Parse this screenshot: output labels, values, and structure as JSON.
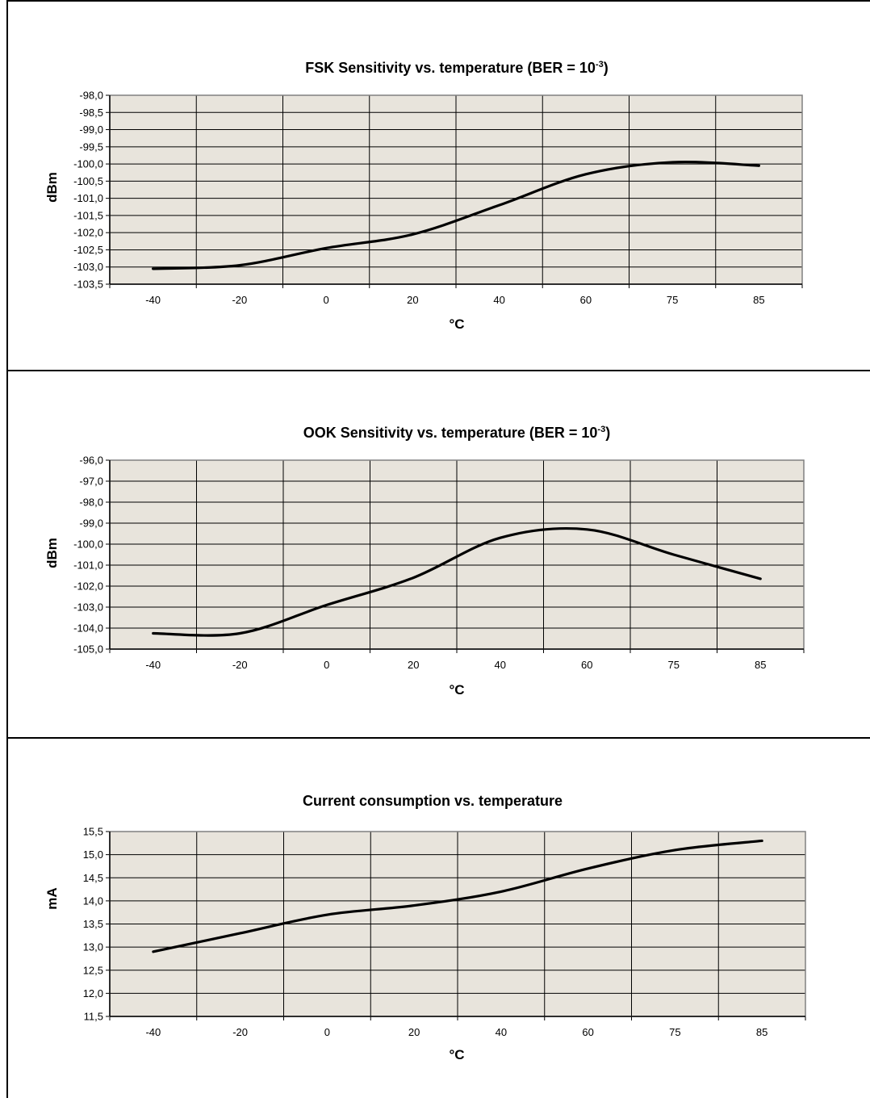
{
  "chart_data": [
    {
      "type": "line",
      "title_main": "FSK Sensitivity vs. temperature (BER = 10",
      "title_sup": "-3",
      "title_end": ")",
      "xlabel": "°C",
      "ylabel": "dBm",
      "categories": [
        "-40",
        "-20",
        "0",
        "20",
        "40",
        "60",
        "75",
        "85"
      ],
      "ylim": [
        -103.5,
        -98.0
      ],
      "ystep": 0.5,
      "ytick_labels": [
        "-98,0",
        "-98,5",
        "-99,0",
        "-99,5",
        "-100,0",
        "-100,5",
        "-101,0",
        "-101,5",
        "-102,0",
        "-102,5",
        "-103,0",
        "-103,5"
      ],
      "grid": true,
      "series": [
        {
          "values": [
            -103.05,
            -102.95,
            -102.45,
            -102.05,
            -101.2,
            -100.3,
            -99.95,
            -100.05
          ]
        }
      ]
    },
    {
      "type": "line",
      "title_main": "OOK Sensitivity vs. temperature (BER = 10",
      "title_sup": "-3",
      "title_end": ")",
      "xlabel": "°C",
      "ylabel": "dBm",
      "categories": [
        "-40",
        "-20",
        "0",
        "20",
        "40",
        "60",
        "75",
        "85"
      ],
      "ylim": [
        -105.0,
        -96.0
      ],
      "ystep": 1.0,
      "ytick_labels": [
        "-96,0",
        "-97,0",
        "-98,0",
        "-99,0",
        "-100,0",
        "-101,0",
        "-102,0",
        "-103,0",
        "-104,0",
        "-105,0"
      ],
      "grid": true,
      "series": [
        {
          "values": [
            -104.25,
            -104.25,
            -102.9,
            -101.6,
            -99.7,
            -99.3,
            -100.5,
            -101.65
          ]
        }
      ]
    },
    {
      "type": "line",
      "title_main": "Current consumption vs. temperature",
      "title_sup": "",
      "title_end": "",
      "xlabel": "°C",
      "ylabel": "mA",
      "categories": [
        "-40",
        "-20",
        "0",
        "20",
        "40",
        "60",
        "75",
        "85"
      ],
      "ylim": [
        11.5,
        15.5
      ],
      "ystep": 0.5,
      "ytick_labels": [
        "15,5",
        "15,0",
        "14,5",
        "14,0",
        "13,5",
        "13,0",
        "12,5",
        "12,0",
        "11,5"
      ],
      "grid": true,
      "series": [
        {
          "values": [
            12.9,
            13.3,
            13.7,
            13.9,
            14.2,
            14.7,
            15.1,
            15.3
          ]
        }
      ]
    }
  ]
}
